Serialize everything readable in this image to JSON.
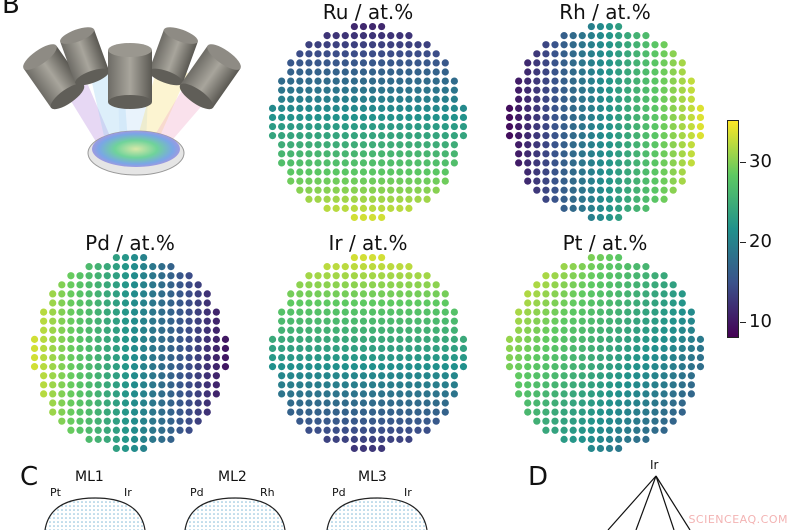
{
  "panels": {
    "b": "B",
    "c": "C",
    "d": "D"
  },
  "maps": [
    {
      "title": "Ru / at.%",
      "gradient": "vertical-increasing-down"
    },
    {
      "title": "Rh / at.%",
      "gradient": "horizontal-increasing-right"
    },
    {
      "title": "Pd / at.%",
      "gradient": "horizontal-increasing-left"
    },
    {
      "title": "Ir / at.%",
      "gradient": "vertical-increasing-up"
    },
    {
      "title": "Pt / at.%",
      "gradient": "diagonal-increasing-upper-left"
    }
  ],
  "colorbar": {
    "ticks": [
      "30",
      "20",
      "10"
    ],
    "colormap": [
      "#440154",
      "#3b528b",
      "#21918c",
      "#5ec962",
      "#fde725"
    ]
  },
  "ml": [
    {
      "title": "ML1",
      "left": "Pt",
      "right": "Ir"
    },
    {
      "title": "ML2",
      "left": "Pd",
      "right": "Rh"
    },
    {
      "title": "ML3",
      "left": "Pd",
      "right": "Ir"
    }
  ],
  "triangle": {
    "apex": "Ir"
  },
  "watermark": "SCIENCEAQ.COM"
}
